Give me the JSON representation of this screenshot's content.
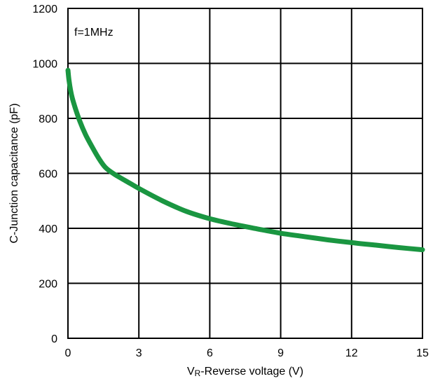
{
  "chart_data": {
    "type": "line",
    "title": "",
    "annotation": "f=1MHz",
    "xlabel_sub": "R",
    "xlabel_prefix": "V",
    "xlabel_rest": "-Reverse voltage (V)",
    "ylabel": "C-Junction capacitance (pF)",
    "xlim": [
      0,
      15
    ],
    "ylim": [
      0,
      1200
    ],
    "x_ticks": [
      0,
      3,
      6,
      9,
      12,
      15
    ],
    "y_ticks": [
      0,
      200,
      400,
      600,
      800,
      1000,
      1200
    ],
    "x_tick_labels": [
      "0",
      "3",
      "6",
      "9",
      "12",
      "15"
    ],
    "y_tick_labels": [
      "0",
      "200",
      "400",
      "600",
      "800",
      "1000",
      "1200"
    ],
    "grid": true,
    "series": [
      {
        "color": "#1a9641",
        "x": [
          0,
          0.05,
          0.15,
          0.3,
          0.5,
          0.75,
          1.0,
          1.3,
          1.6,
          2.0,
          2.5,
          3.0,
          4.0,
          5.0,
          6.0,
          7.0,
          8.0,
          9.0,
          10.0,
          11.0,
          12.0,
          13.0,
          14.0,
          15.0
        ],
        "y": [
          975,
          935,
          885,
          840,
          790,
          740,
          700,
          655,
          620,
          595,
          570,
          545,
          500,
          462,
          435,
          415,
          398,
          382,
          370,
          358,
          348,
          339,
          330,
          322
        ]
      }
    ]
  }
}
